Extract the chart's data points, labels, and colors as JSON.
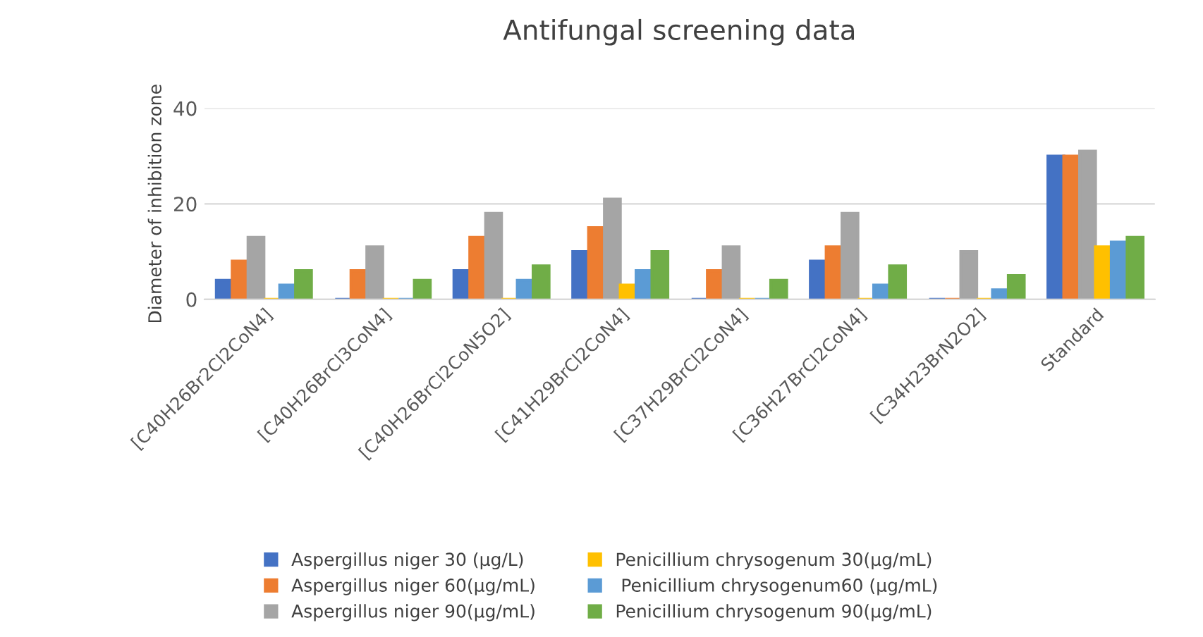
{
  "chart_data": {
    "type": "bar",
    "title": "Antifungal screening data",
    "ylabel": "Diameter of inhibition zone",
    "categories": [
      "[C40H26Br2Cl2CoN4]",
      "[C40H26BrCl3CoN4]",
      "[C40H26BrCl2CoN5O2]",
      "[C41H29BrCl2CoN4]",
      "[C37H29BrCl2CoN4]",
      "[C36H27BrCl2CoN4]",
      "[C34H23BrN2O2]",
      "Standard"
    ],
    "series": [
      {
        "name": "Aspergillus niger 30 (µg/L)",
        "color": "#4472c4",
        "values": [
          4,
          0,
          6,
          10,
          0,
          8,
          0,
          30
        ]
      },
      {
        "name": "Aspergillus niger 60(µg/mL)",
        "color": "#ed7d31",
        "values": [
          8,
          6,
          13,
          15,
          6,
          11,
          0,
          30
        ]
      },
      {
        "name": "Aspergillus niger 90(µg/mL)",
        "color": "#a5a5a5",
        "values": [
          13,
          11,
          18,
          21,
          11,
          18,
          10,
          31
        ]
      },
      {
        "name": "Penicillium chrysogenum 30(µg/mL)",
        "color": "#ffc000",
        "values": [
          0,
          0,
          0,
          3,
          0,
          0,
          0,
          11
        ]
      },
      {
        "name": " Penicillium chrysogenum60 (µg/mL)",
        "color": "#5b9bd5",
        "values": [
          3,
          0,
          4,
          6,
          0,
          3,
          2,
          12
        ]
      },
      {
        "name": "Penicillium chrysogenum 90(µg/mL)",
        "color": "#70ad47",
        "values": [
          6,
          4,
          7,
          10,
          4,
          7,
          5,
          13
        ]
      }
    ],
    "ylim": [
      0,
      40
    ],
    "yticks": [
      0,
      20,
      40
    ],
    "grid": "y",
    "legend": "bottom"
  }
}
